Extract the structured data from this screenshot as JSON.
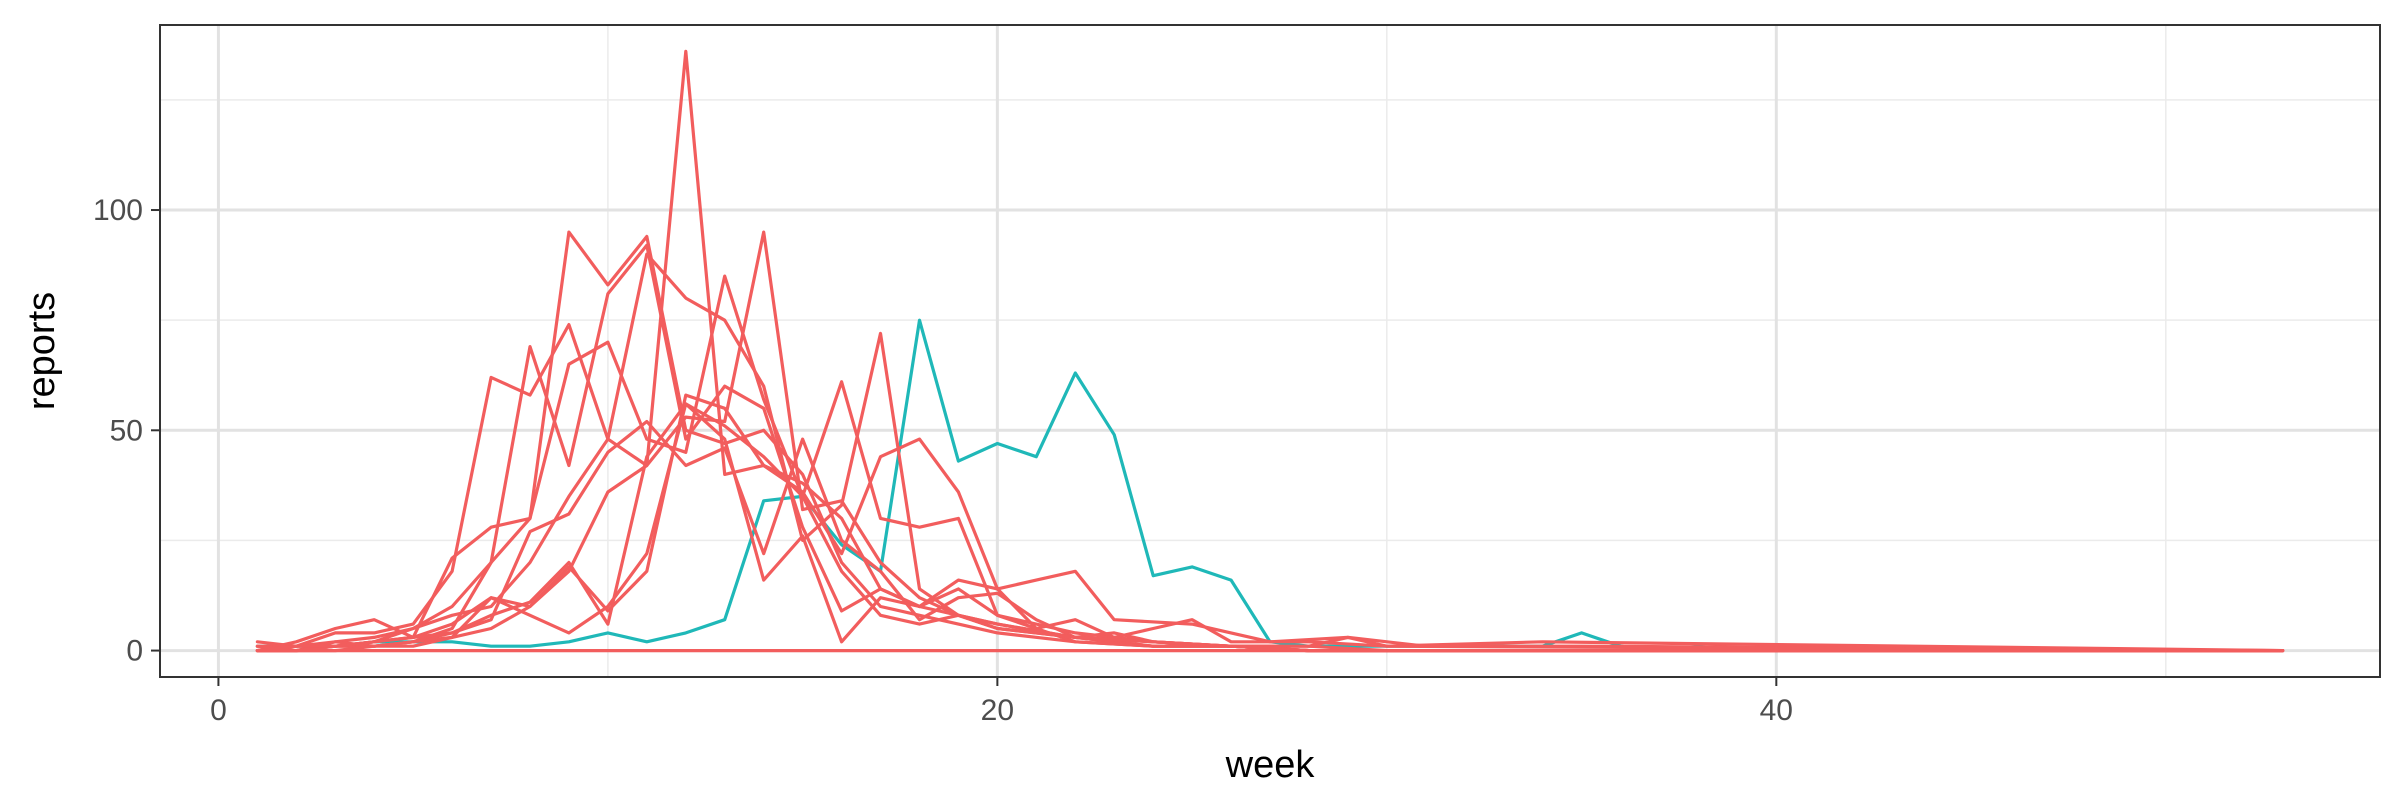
{
  "chart_data": {
    "type": "line",
    "xlabel": "week",
    "ylabel": "reports",
    "xlim": [
      -1.5,
      55.5
    ],
    "ylim": [
      -6,
      142
    ],
    "x_ticks": [
      0,
      20,
      40
    ],
    "x_minor": [
      10,
      30,
      50
    ],
    "y_ticks": [
      0,
      50,
      100
    ],
    "y_minor": [
      25,
      75,
      125
    ],
    "grid": true,
    "legend": "none",
    "colors": {
      "teal": "#1fb8b8",
      "red": "#f25d5d"
    },
    "series": [
      {
        "color": "#1fb8b8",
        "x": [
          1,
          2,
          3,
          4,
          5,
          6,
          7,
          8,
          9,
          10,
          11,
          12,
          13,
          14,
          15,
          16,
          17,
          18,
          19,
          20,
          21,
          22,
          23,
          24,
          25,
          26,
          27,
          28,
          29,
          30,
          31,
          32,
          33,
          34,
          35,
          36,
          37,
          38,
          39,
          40,
          42,
          45,
          50,
          53
        ],
        "y": [
          1,
          1,
          1,
          2,
          2,
          2,
          1,
          1,
          2,
          4,
          2,
          4,
          7,
          34,
          35,
          24,
          18,
          75,
          43,
          47,
          44,
          63,
          49,
          17,
          19,
          16,
          2,
          1,
          1,
          1,
          1,
          1,
          1,
          1,
          4,
          1,
          0,
          1,
          0,
          0,
          0,
          0,
          0,
          0
        ]
      },
      {
        "color": "#f25d5d",
        "x": [
          1,
          2,
          3,
          4,
          5,
          6,
          7,
          8,
          9,
          10,
          11,
          12,
          13,
          14,
          15,
          16,
          17,
          18,
          19,
          20,
          22,
          24,
          26,
          28,
          30,
          53
        ],
        "y": [
          2,
          1,
          2,
          3,
          5,
          10,
          20,
          30,
          95,
          83,
          94,
          50,
          47,
          50,
          40,
          20,
          10,
          8,
          6,
          4,
          2,
          1,
          1,
          0,
          0,
          0
        ]
      },
      {
        "color": "#f25d5d",
        "x": [
          1,
          2,
          3,
          4,
          5,
          6,
          7,
          8,
          9,
          10,
          11,
          12,
          13,
          14,
          15,
          16,
          17,
          18,
          19,
          20,
          22,
          24,
          26,
          28,
          30,
          53
        ],
        "y": [
          1,
          1,
          4,
          4,
          6,
          18,
          62,
          58,
          74,
          48,
          42,
          53,
          52,
          95,
          32,
          34,
          20,
          12,
          8,
          5,
          3,
          1,
          1,
          0,
          0,
          0
        ]
      },
      {
        "color": "#f25d5d",
        "x": [
          1,
          2,
          3,
          4,
          5,
          6,
          7,
          8,
          9,
          10,
          11,
          12,
          13,
          14,
          15,
          16,
          17,
          18,
          19,
          20,
          22,
          24,
          26,
          28,
          30,
          53
        ],
        "y": [
          0,
          1,
          1,
          2,
          3,
          6,
          12,
          10,
          18,
          36,
          42,
          136,
          40,
          42,
          38,
          30,
          14,
          10,
          8,
          6,
          3,
          2,
          1,
          0,
          0,
          0
        ]
      },
      {
        "color": "#f25d5d",
        "x": [
          1,
          2,
          3,
          4,
          5,
          6,
          7,
          8,
          9,
          10,
          11,
          12,
          13,
          14,
          15,
          16,
          17,
          18,
          19,
          20,
          22,
          24,
          26,
          28,
          30,
          53
        ],
        "y": [
          0,
          2,
          5,
          7,
          3,
          21,
          28,
          30,
          65,
          70,
          48,
          45,
          85,
          57,
          35,
          61,
          30,
          28,
          30,
          8,
          4,
          2,
          1,
          0,
          0,
          0
        ]
      },
      {
        "color": "#f25d5d",
        "x": [
          1,
          2,
          3,
          4,
          5,
          6,
          7,
          8,
          9,
          10,
          11,
          12,
          13,
          14,
          15,
          16,
          17,
          18,
          19,
          20,
          22,
          24,
          26,
          28,
          30,
          53
        ],
        "y": [
          0,
          0,
          1,
          2,
          5,
          8,
          10,
          20,
          35,
          48,
          90,
          80,
          75,
          60,
          25,
          33,
          72,
          14,
          8,
          6,
          3,
          1,
          1,
          0,
          0,
          0
        ]
      },
      {
        "color": "#f25d5d",
        "x": [
          1,
          2,
          3,
          4,
          5,
          6,
          7,
          8,
          9,
          10,
          11,
          12,
          13,
          14,
          15,
          16,
          17,
          18,
          19,
          20,
          21,
          22,
          23,
          25,
          27,
          29,
          31,
          33,
          35,
          53
        ],
        "y": [
          1,
          0,
          2,
          1,
          2,
          3,
          5,
          10,
          19,
          9,
          18,
          58,
          55,
          42,
          36,
          22,
          44,
          48,
          36,
          14,
          16,
          18,
          7,
          6,
          2,
          3,
          1,
          1,
          1,
          0
        ]
      },
      {
        "color": "#f25d5d",
        "x": [
          1,
          2,
          3,
          4,
          5,
          6,
          7,
          8,
          9,
          10,
          11,
          12,
          13,
          14,
          15,
          16,
          17,
          18,
          19,
          20,
          21,
          22,
          23,
          24,
          25,
          26,
          28,
          30,
          34,
          53
        ],
        "y": [
          0,
          0,
          1,
          1,
          2,
          4,
          8,
          11,
          20,
          6,
          44,
          56,
          48,
          16,
          26,
          2,
          12,
          10,
          16,
          14,
          5,
          7,
          3,
          5,
          7,
          2,
          2,
          1,
          2,
          0
        ]
      },
      {
        "color": "#f25d5d",
        "x": [
          1,
          2,
          3,
          4,
          5,
          6,
          7,
          8,
          9,
          10,
          11,
          12,
          13,
          14,
          15,
          16,
          17,
          18,
          19,
          20,
          22,
          24,
          26,
          28,
          29,
          30,
          53
        ],
        "y": [
          0,
          0,
          1,
          1,
          2,
          5,
          20,
          69,
          42,
          81,
          92,
          48,
          60,
          55,
          28,
          9,
          14,
          10,
          14,
          8,
          2,
          1,
          1,
          1,
          3,
          1,
          0
        ]
      },
      {
        "color": "#f25d5d",
        "x": [
          1,
          2,
          3,
          4,
          5,
          6,
          7,
          8,
          9,
          10,
          11,
          12,
          13,
          14,
          15,
          16,
          17,
          18,
          19,
          20,
          21,
          22,
          23,
          24,
          26,
          28,
          30,
          53
        ],
        "y": [
          0,
          1,
          1,
          2,
          3,
          4,
          7,
          27,
          31,
          45,
          52,
          42,
          46,
          22,
          48,
          25,
          18,
          7,
          12,
          13,
          7,
          3,
          4,
          2,
          1,
          1,
          0,
          0
        ]
      },
      {
        "color": "#f25d5d",
        "x": [
          1,
          2,
          3,
          4,
          5,
          6,
          7,
          8,
          9,
          10,
          11,
          12,
          13,
          14,
          15,
          16,
          17,
          18,
          19,
          20,
          22,
          24,
          26,
          28,
          30,
          53
        ],
        "y": [
          0,
          0,
          0,
          1,
          1,
          3,
          12,
          8,
          4,
          10,
          22,
          56,
          51,
          44,
          35,
          18,
          8,
          6,
          8,
          5,
          3,
          2,
          1,
          0,
          0,
          0
        ]
      },
      {
        "color": "#f25d5d",
        "x": [
          1,
          53
        ],
        "y": [
          0,
          0
        ]
      }
    ]
  }
}
